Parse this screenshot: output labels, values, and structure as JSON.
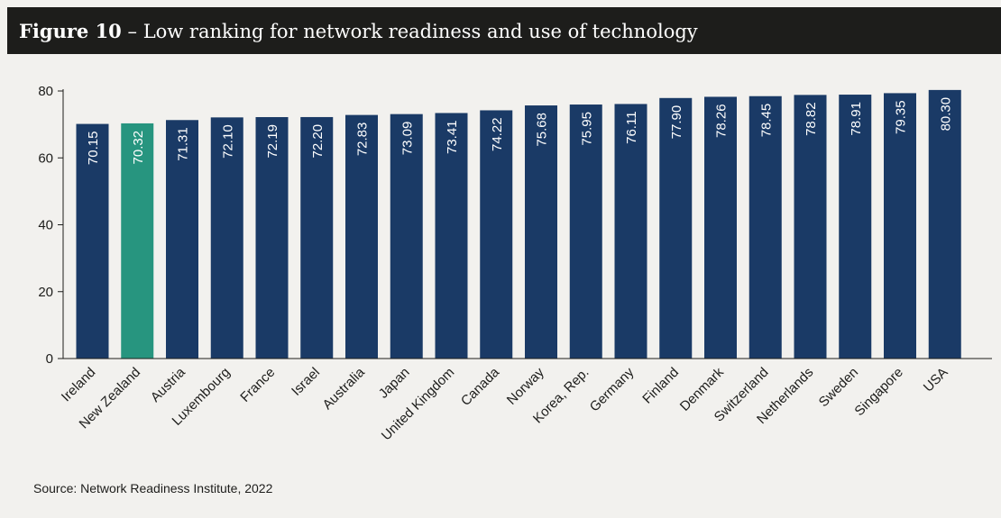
{
  "figure": {
    "number": "Figure 10",
    "separator": "–",
    "title": "Low ranking for network readiness and use of technology"
  },
  "source": "Source: Network Readiness Institute, 2022",
  "colors": {
    "bar": "#1a3a66",
    "highlight": "#27957f",
    "header_bg": "#1d1d1b",
    "background": "#f2f1ee"
  },
  "chart_data": {
    "type": "bar",
    "categories": [
      "Ireland",
      "New Zealand",
      "Austria",
      "Luxembourg",
      "France",
      "Israel",
      "Australia",
      "Japan",
      "United Kingdom",
      "Canada",
      "Norway",
      "Korea, Rep.",
      "Germany",
      "Finland",
      "Denmark",
      "Switzerland",
      "Netherlands",
      "Sweden",
      "Singapore",
      "USA"
    ],
    "values": [
      70.15,
      70.32,
      71.31,
      72.1,
      72.19,
      72.2,
      72.83,
      73.09,
      73.41,
      74.22,
      75.68,
      75.95,
      76.11,
      77.9,
      78.26,
      78.45,
      78.82,
      78.91,
      79.35,
      80.3
    ],
    "value_labels": [
      "70.15",
      "70.32",
      "71.31",
      "72.10",
      "72.19",
      "72.20",
      "72.83",
      "73.09",
      "73.41",
      "74.22",
      "75.68",
      "75.95",
      "76.11",
      "77.90",
      "78.26",
      "78.45",
      "78.82",
      "78.91",
      "79.35",
      "80.30"
    ],
    "highlight_category": "New Zealand",
    "yticks": [
      0,
      20,
      40,
      60,
      80
    ],
    "ylim": [
      0,
      80
    ],
    "grid": false,
    "legend": "none",
    "xlabel": "",
    "ylabel": ""
  }
}
